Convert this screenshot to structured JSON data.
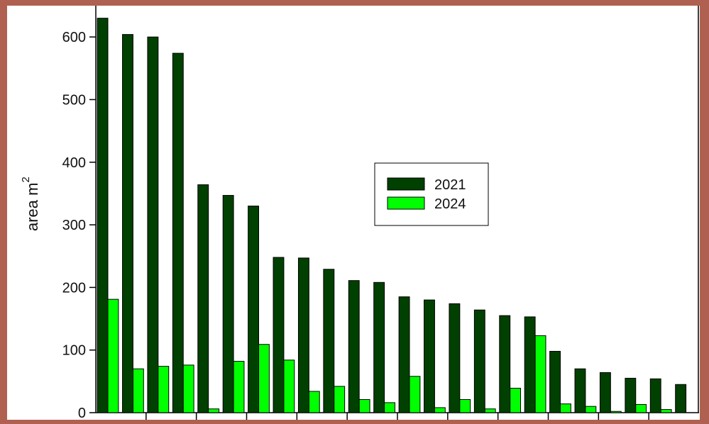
{
  "chart_data": {
    "type": "bar",
    "title": "",
    "xlabel": "",
    "ylabel": "area m",
    "ylabel_superscript": "2",
    "ylim": [
      0,
      650
    ],
    "yticks": [
      0,
      100,
      200,
      300,
      400,
      500,
      600
    ],
    "grid": false,
    "legend_position": "center-right",
    "series": [
      {
        "name": "2021",
        "color": "#004000",
        "values": [
          630,
          604,
          600,
          574,
          364,
          347,
          330,
          248,
          247,
          229,
          211,
          208,
          185,
          180,
          174,
          164,
          155,
          153,
          98,
          70,
          64,
          55,
          54,
          45
        ]
      },
      {
        "name": "2024",
        "color": "#00ff00",
        "values": [
          181,
          70,
          74,
          76,
          6,
          82,
          109,
          84,
          34,
          42,
          21,
          16,
          58,
          8,
          21,
          6,
          39,
          123,
          14,
          10,
          2,
          13,
          5,
          0
        ]
      }
    ]
  }
}
